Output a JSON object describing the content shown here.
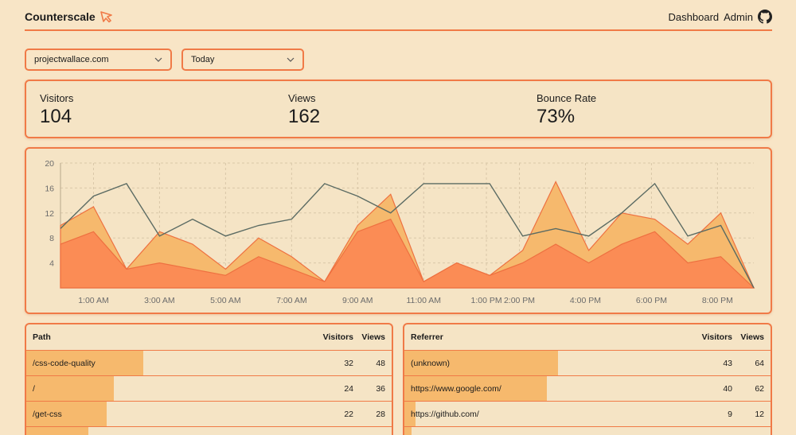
{
  "header": {
    "brand": "Counterscale",
    "nav": {
      "dashboard": "Dashboard",
      "admin": "Admin"
    }
  },
  "filters": {
    "site": "projectwallace.com",
    "interval": "Today"
  },
  "stats": [
    {
      "label": "Visitors",
      "value": "104"
    },
    {
      "label": "Views",
      "value": "162"
    },
    {
      "label": "Bounce Rate",
      "value": "73%"
    }
  ],
  "chart_data": {
    "type": "area",
    "y_ticks": [
      "20",
      "16",
      "12",
      "8",
      "4"
    ],
    "ylim": [
      0,
      20
    ],
    "x_ticks": [
      {
        "label": "1:00 AM",
        "pos": 1
      },
      {
        "label": "3:00 AM",
        "pos": 3
      },
      {
        "label": "5:00 AM",
        "pos": 5
      },
      {
        "label": "7:00 AM",
        "pos": 7
      },
      {
        "label": "9:00 AM",
        "pos": 9
      },
      {
        "label": "11:00 AM",
        "pos": 11
      },
      {
        "label": "1:00 PM",
        "pos": 12.9
      },
      {
        "label": "2:00 PM",
        "pos": 13.9
      },
      {
        "label": "4:00 PM",
        "pos": 15.9
      },
      {
        "label": "6:00 PM",
        "pos": 17.9
      },
      {
        "label": "8:00 PM",
        "pos": 19.9
      }
    ],
    "grid": true,
    "series": [
      {
        "values": [
          10,
          13,
          3,
          9,
          7,
          3,
          8,
          5,
          1,
          10,
          15,
          1,
          4,
          2,
          6,
          17,
          6,
          12,
          11,
          7,
          12,
          0
        ]
      },
      {
        "values": [
          7,
          9,
          3,
          4,
          3,
          2,
          5,
          3,
          1,
          9,
          11,
          1,
          4,
          2,
          4,
          7,
          4,
          7,
          9,
          4,
          5,
          0
        ]
      },
      {
        "values": [
          9.5,
          14.7,
          16.7,
          8.3,
          11,
          8.3,
          10,
          11,
          16.7,
          14.7,
          12,
          16.7,
          16.7,
          16.7,
          8.3,
          9.5,
          8.3,
          12,
          16.7,
          8.3,
          10,
          0
        ]
      }
    ],
    "colors": {
      "views": "#f6b96d",
      "visitors": "#fb8c55",
      "bounce": "#5b6b63",
      "stroke": "#ee7040"
    }
  },
  "paths": {
    "headers": {
      "name": "Path",
      "visitors": "Visitors",
      "views": "Views"
    },
    "rows": [
      {
        "name": "/css-code-quality",
        "visitors": "32",
        "views": "48",
        "share": 0.32
      },
      {
        "name": "/",
        "visitors": "24",
        "views": "36",
        "share": 0.24
      },
      {
        "name": "/get-css",
        "visitors": "22",
        "views": "28",
        "share": 0.22
      },
      {
        "name": "",
        "visitors": "",
        "views": "",
        "share": 0.17
      }
    ]
  },
  "referrers": {
    "headers": {
      "name": "Referrer",
      "visitors": "Visitors",
      "views": "Views"
    },
    "rows": [
      {
        "name": "(unknown)",
        "visitors": "43",
        "views": "64",
        "share": 0.42
      },
      {
        "name": "https://www.google.com/",
        "visitors": "40",
        "views": "62",
        "share": 0.39
      },
      {
        "name": "https://github.com/",
        "visitors": "9",
        "views": "12",
        "share": 0.03
      },
      {
        "name": "",
        "visitors": "",
        "views": "",
        "share": 0.02
      }
    ]
  }
}
